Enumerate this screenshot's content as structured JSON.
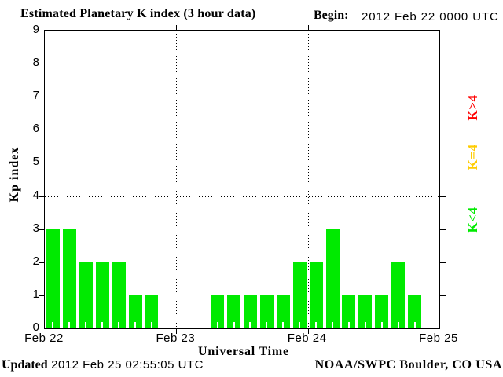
{
  "header": {
    "begin_label": "Begin:",
    "begin_value": "2012 Feb 22 0000 UTC"
  },
  "footer": {
    "updated_label": "Updated",
    "updated_value": "2012 Feb 25 02:55:05 UTC",
    "credit": "NOAA/SWPC Boulder, CO USA"
  },
  "chart_data": {
    "type": "bar",
    "title": "Estimated Planetary K index (3 hour data)",
    "xlabel": "Universal Time",
    "ylabel": "Kp index",
    "ylim": [
      0,
      9
    ],
    "yticks": [
      0,
      1,
      2,
      3,
      4,
      5,
      6,
      7,
      8,
      9
    ],
    "grid_y": [
      4,
      6,
      8
    ],
    "x_day_labels": [
      "Feb 22",
      "Feb 23",
      "Feb 24",
      "Feb 25"
    ],
    "bars_per_day": 8,
    "bar_interval_hours": 3,
    "series": [
      {
        "day": "Feb 22",
        "values": [
          3,
          3,
          2,
          2,
          2,
          1,
          1,
          null
        ]
      },
      {
        "day": "Feb 23",
        "values": [
          null,
          null,
          1,
          1,
          1,
          1,
          1,
          2
        ]
      },
      {
        "day": "Feb 24",
        "values": [
          2,
          3,
          1,
          1,
          1,
          2,
          1,
          null
        ]
      }
    ],
    "bar_color": "#00ea00",
    "grid_on": true,
    "legend_position": "right",
    "legend": [
      {
        "label": "K>4",
        "color": "#ff0000"
      },
      {
        "label": "K=4",
        "color": "#ffcc00"
      },
      {
        "label": "K<4",
        "color": "#00ea00"
      }
    ]
  }
}
